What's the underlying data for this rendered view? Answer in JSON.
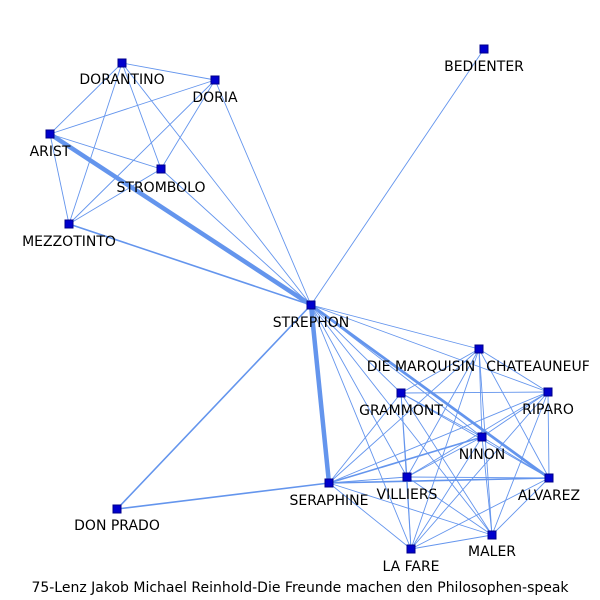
{
  "caption": "75-Lenz Jakob Michael Reinhold-Die Freunde machen den Philosophen-speak",
  "colors": {
    "edge": "#6495ed",
    "node_fill": "#0000cd",
    "node_stroke": "#00008b",
    "label": "#000000",
    "background": "#ffffff"
  },
  "nodes": [
    {
      "id": "DORANTINO",
      "label": "DORANTINO"
    },
    {
      "id": "DORIA",
      "label": "DORIA"
    },
    {
      "id": "BEDIENTER",
      "label": "BEDIENTER"
    },
    {
      "id": "ARIST",
      "label": "ARIST"
    },
    {
      "id": "STROMBOLO",
      "label": "STROMBOLO"
    },
    {
      "id": "MEZZOTINTO",
      "label": "MEZZOTINTO"
    },
    {
      "id": "STREPHON",
      "label": "STREPHON"
    },
    {
      "id": "DIE_MARQUISIN",
      "label": "DIE MARQUISIN"
    },
    {
      "id": "CHATEAUNEUF",
      "label": "CHATEAUNEUF"
    },
    {
      "id": "GRAMMONT",
      "label": "GRAMMONT"
    },
    {
      "id": "RIPARO",
      "label": "RIPARO"
    },
    {
      "id": "NINON",
      "label": "NINON"
    },
    {
      "id": "SERAPHINE",
      "label": "SERAPHINE"
    },
    {
      "id": "VILLIERS",
      "label": "VILLIERS"
    },
    {
      "id": "ALVAREZ",
      "label": "ALVAREZ"
    },
    {
      "id": "DON_PRADO",
      "label": "DON PRADO"
    },
    {
      "id": "LA_FARE",
      "label": "LA FARE"
    },
    {
      "id": "MALER",
      "label": "MALER"
    }
  ],
  "edges": [
    {
      "source": "ARIST",
      "target": "STREPHON",
      "weight": 5
    },
    {
      "source": "STREPHON",
      "target": "SERAPHINE",
      "weight": 5
    },
    {
      "source": "STREPHON",
      "target": "ALVAREZ",
      "weight": 3
    },
    {
      "source": "STREPHON",
      "target": "DON_PRADO",
      "weight": 2
    },
    {
      "source": "MEZZOTINTO",
      "target": "STREPHON",
      "weight": 2
    },
    {
      "source": "SERAPHINE",
      "target": "DON_PRADO",
      "weight": 2
    },
    {
      "source": "SERAPHINE",
      "target": "ALVAREZ",
      "weight": 2
    },
    {
      "source": "SERAPHINE",
      "target": "NINON",
      "weight": 2
    },
    {
      "source": "DORANTINO",
      "target": "DORIA",
      "weight": 1
    },
    {
      "source": "DORANTINO",
      "target": "ARIST",
      "weight": 1
    },
    {
      "source": "DORANTINO",
      "target": "STROMBOLO",
      "weight": 1
    },
    {
      "source": "DORANTINO",
      "target": "MEZZOTINTO",
      "weight": 1
    },
    {
      "source": "DORANTINO",
      "target": "STREPHON",
      "weight": 1
    },
    {
      "source": "DORIA",
      "target": "ARIST",
      "weight": 1
    },
    {
      "source": "DORIA",
      "target": "STROMBOLO",
      "weight": 1
    },
    {
      "source": "DORIA",
      "target": "MEZZOTINTO",
      "weight": 1
    },
    {
      "source": "DORIA",
      "target": "STREPHON",
      "weight": 1
    },
    {
      "source": "ARIST",
      "target": "STROMBOLO",
      "weight": 1
    },
    {
      "source": "ARIST",
      "target": "MEZZOTINTO",
      "weight": 1
    },
    {
      "source": "STROMBOLO",
      "target": "MEZZOTINTO",
      "weight": 1
    },
    {
      "source": "STROMBOLO",
      "target": "STREPHON",
      "weight": 1
    },
    {
      "source": "BEDIENTER",
      "target": "STREPHON",
      "weight": 1
    },
    {
      "source": "STREPHON",
      "target": "DIE_MARQUISIN",
      "weight": 1
    },
    {
      "source": "STREPHON",
      "target": "RIPARO",
      "weight": 1
    },
    {
      "source": "STREPHON",
      "target": "GRAMMONT",
      "weight": 1
    },
    {
      "source": "STREPHON",
      "target": "VILLIERS",
      "weight": 1
    },
    {
      "source": "STREPHON",
      "target": "LA_FARE",
      "weight": 1
    },
    {
      "source": "STREPHON",
      "target": "MALER",
      "weight": 1
    },
    {
      "source": "STREPHON",
      "target": "NINON",
      "weight": 1
    },
    {
      "source": "DIE_MARQUISIN",
      "target": "RIPARO",
      "weight": 1
    },
    {
      "source": "DIE_MARQUISIN",
      "target": "GRAMMONT",
      "weight": 1
    },
    {
      "source": "DIE_MARQUISIN",
      "target": "NINON",
      "weight": 1
    },
    {
      "source": "DIE_MARQUISIN",
      "target": "SERAPHINE",
      "weight": 1
    },
    {
      "source": "DIE_MARQUISIN",
      "target": "VILLIERS",
      "weight": 1
    },
    {
      "source": "DIE_MARQUISIN",
      "target": "ALVAREZ",
      "weight": 1
    },
    {
      "source": "DIE_MARQUISIN",
      "target": "LA_FARE",
      "weight": 1
    },
    {
      "source": "DIE_MARQUISIN",
      "target": "MALER",
      "weight": 1
    },
    {
      "source": "GRAMMONT",
      "target": "RIPARO",
      "weight": 1
    },
    {
      "source": "GRAMMONT",
      "target": "NINON",
      "weight": 1
    },
    {
      "source": "GRAMMONT",
      "target": "SERAPHINE",
      "weight": 1
    },
    {
      "source": "GRAMMONT",
      "target": "VILLIERS",
      "weight": 1
    },
    {
      "source": "GRAMMONT",
      "target": "ALVAREZ",
      "weight": 1
    },
    {
      "source": "GRAMMONT",
      "target": "LA_FARE",
      "weight": 1
    },
    {
      "source": "GRAMMONT",
      "target": "MALER",
      "weight": 1
    },
    {
      "source": "RIPARO",
      "target": "NINON",
      "weight": 1
    },
    {
      "source": "RIPARO",
      "target": "SERAPHINE",
      "weight": 1
    },
    {
      "source": "RIPARO",
      "target": "VILLIERS",
      "weight": 1
    },
    {
      "source": "RIPARO",
      "target": "ALVAREZ",
      "weight": 1
    },
    {
      "source": "RIPARO",
      "target": "LA_FARE",
      "weight": 1
    },
    {
      "source": "RIPARO",
      "target": "MALER",
      "weight": 1
    },
    {
      "source": "NINON",
      "target": "VILLIERS",
      "weight": 1
    },
    {
      "source": "NINON",
      "target": "ALVAREZ",
      "weight": 1
    },
    {
      "source": "NINON",
      "target": "LA_FARE",
      "weight": 1
    },
    {
      "source": "NINON",
      "target": "MALER",
      "weight": 1
    },
    {
      "source": "SERAPHINE",
      "target": "VILLIERS",
      "weight": 1
    },
    {
      "source": "SERAPHINE",
      "target": "LA_FARE",
      "weight": 1
    },
    {
      "source": "SERAPHINE",
      "target": "MALER",
      "weight": 1
    },
    {
      "source": "VILLIERS",
      "target": "ALVAREZ",
      "weight": 1
    },
    {
      "source": "VILLIERS",
      "target": "LA_FARE",
      "weight": 1
    },
    {
      "source": "VILLIERS",
      "target": "MALER",
      "weight": 1
    },
    {
      "source": "ALVAREZ",
      "target": "LA_FARE",
      "weight": 1
    },
    {
      "source": "ALVAREZ",
      "target": "MALER",
      "weight": 1
    },
    {
      "source": "LA_FARE",
      "target": "MALER",
      "weight": 1
    }
  ]
}
